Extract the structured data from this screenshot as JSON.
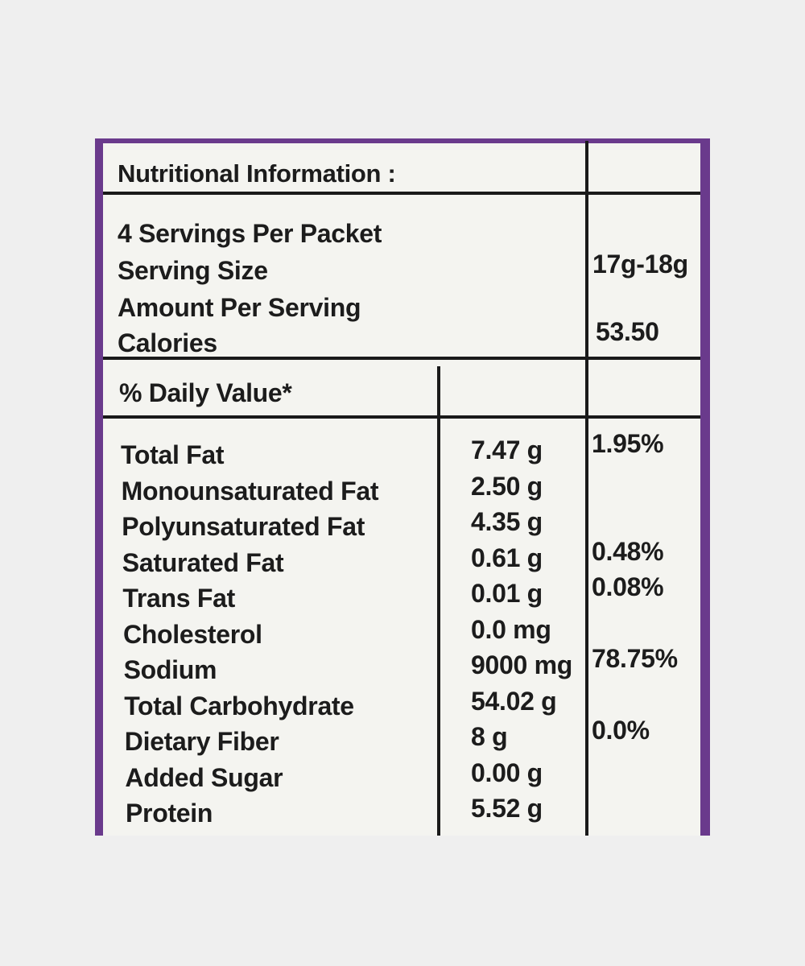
{
  "header": {
    "title": "Nutritional Information :"
  },
  "serving": {
    "servings_per_packet": "4 Servings Per Packet",
    "serving_size_label": "Serving Size",
    "serving_size_value": "17g-18g",
    "amount_per_serving": "Amount Per Serving",
    "calories_label": "Calories",
    "calories_value": "53.50"
  },
  "daily_value_header": "% Daily Value*",
  "nutrients": [
    {
      "name": "Total Fat",
      "amount": "7.47 g",
      "daily_value": "1.95%"
    },
    {
      "name": "Monounsaturated Fat",
      "amount": "2.50 g"
    },
    {
      "name": "Polyunsaturated Fat",
      "amount": "4.35 g"
    },
    {
      "name": "Saturated Fat",
      "amount": "0.61 g",
      "daily_value": "0.48%"
    },
    {
      "name": "Trans Fat",
      "amount": "0.01 g",
      "daily_value": "0.08%"
    },
    {
      "name": "Cholesterol",
      "amount": "0.0 mg"
    },
    {
      "name": "Sodium",
      "amount": "9000 mg",
      "daily_value": "78.75%"
    },
    {
      "name": "Total Carbohydrate",
      "amount": "54.02 g"
    },
    {
      "name": "Dietary Fiber",
      "amount": "8 g",
      "daily_value": "0.0%"
    },
    {
      "name": "Added Sugar",
      "amount": "0.00 g"
    },
    {
      "name": "Protein",
      "amount": "5.52 g"
    }
  ]
}
